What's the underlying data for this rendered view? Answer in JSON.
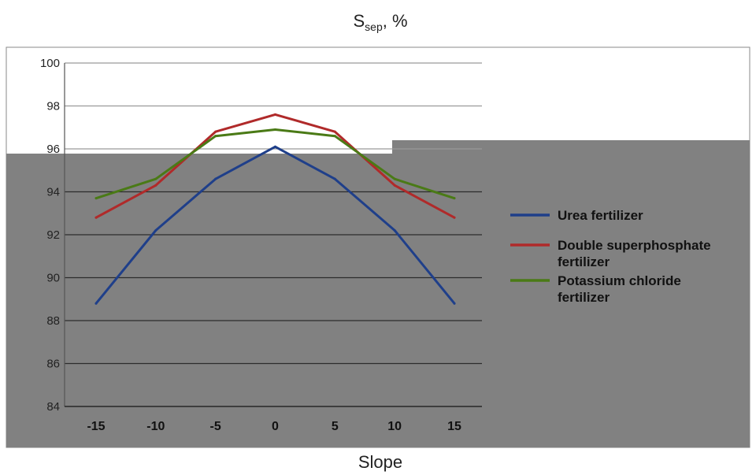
{
  "chart_data": {
    "type": "line",
    "title": {
      "main": "S",
      "sub": "sep",
      "suffix": ", %"
    },
    "xlabel": "Slope",
    "ylabel": "",
    "x": [
      -15,
      -10,
      -5,
      0,
      5,
      10,
      15
    ],
    "x_tick_labels": [
      "-15",
      "-10",
      "-5",
      "0",
      "5",
      "10",
      "15"
    ],
    "ylim": [
      84,
      100
    ],
    "y_ticks": [
      84,
      86,
      88,
      90,
      92,
      94,
      96,
      98,
      100
    ],
    "grid": true,
    "legend_position": "right",
    "series": [
      {
        "name": "Urea fertilizer",
        "color": "#1f3f8a",
        "values": [
          88.8,
          92.2,
          94.6,
          96.1,
          94.6,
          92.2,
          88.8
        ]
      },
      {
        "name": "Double superphosphate fertilizer",
        "name_lines": [
          "Double superphosphate",
          "fertilizer"
        ],
        "color": "#b02a2a",
        "values": [
          92.8,
          94.3,
          96.8,
          97.6,
          96.8,
          94.3,
          92.8
        ]
      },
      {
        "name": "Potassium chloride fertilizer",
        "name_lines": [
          "Potassium chloride",
          "fertilizer"
        ],
        "color": "#4a7a16",
        "values": [
          93.7,
          94.6,
          96.6,
          96.9,
          96.6,
          94.6,
          93.7
        ]
      }
    ]
  }
}
